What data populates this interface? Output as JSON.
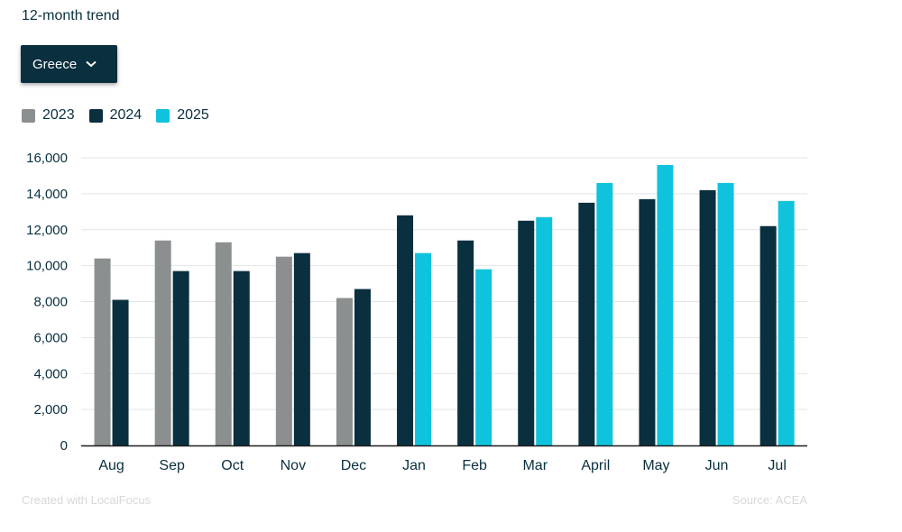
{
  "header": {
    "title": "12-month trend"
  },
  "filter": {
    "selected": "Greece",
    "chevron_icon": "chevron-down-icon"
  },
  "colors": {
    "2023": "#8c8f8f",
    "2024": "#0a2f3f",
    "2025": "#10c3dc",
    "grid": "#e2e4e6",
    "axis": "#1d1d1d"
  },
  "legend": [
    {
      "label": "2023",
      "color": "#8c8f8f"
    },
    {
      "label": "2024",
      "color": "#0a2f3f"
    },
    {
      "label": "2025",
      "color": "#10c3dc"
    }
  ],
  "chart_data": {
    "type": "bar",
    "categories": [
      "Aug",
      "Sep",
      "Oct",
      "Nov",
      "Dec",
      "Jan",
      "Feb",
      "Mar",
      "April",
      "May",
      "Jun",
      "Jul"
    ],
    "series": [
      {
        "name": "2023",
        "values": [
          10400,
          11400,
          11300,
          10500,
          8200,
          null,
          null,
          null,
          null,
          null,
          null,
          null
        ]
      },
      {
        "name": "2024",
        "values": [
          8100,
          9700,
          9700,
          10700,
          8700,
          12800,
          11400,
          12500,
          13500,
          13700,
          14200,
          12200
        ]
      },
      {
        "name": "2025",
        "values": [
          null,
          null,
          null,
          null,
          null,
          10700,
          9800,
          12700,
          14600,
          15600,
          14600,
          13600
        ]
      }
    ],
    "ylim": [
      0,
      16000
    ],
    "yticks": [
      0,
      2000,
      4000,
      6000,
      8000,
      10000,
      12000,
      14000,
      16000
    ],
    "ytick_labels": [
      "0",
      "2,000",
      "4,000",
      "6,000",
      "8,000",
      "10,000",
      "12,000",
      "14,000",
      "16,000"
    ],
    "grid": true,
    "legend_position": "top-left",
    "title": "",
    "xlabel": "",
    "ylabel": ""
  },
  "footer": {
    "credit": "Created with LocalFocus",
    "source": "Source:  ACEA"
  }
}
